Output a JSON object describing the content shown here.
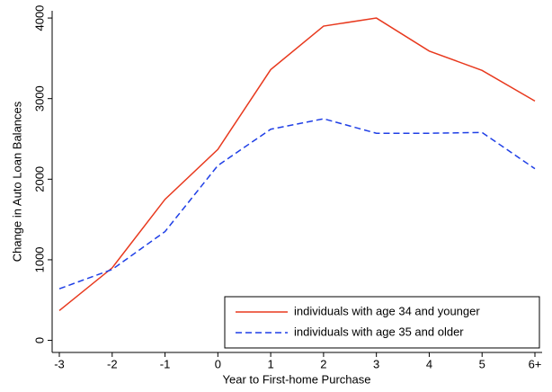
{
  "chart_data": {
    "type": "line",
    "x_label": "Year to First-home Purchase",
    "y_label": "Change in Auto Loan Balances",
    "categories": [
      "-3",
      "-2",
      "-1",
      "0",
      "1",
      "2",
      "3",
      "4",
      "5",
      "6+"
    ],
    "series": [
      {
        "name": "individuals with age 34 and younger",
        "color": "#e8391e",
        "dash": "solid",
        "values": [
          370,
          900,
          1750,
          2370,
          3360,
          3900,
          4000,
          3590,
          3350,
          2970
        ]
      },
      {
        "name": "individuals with age 35 and older",
        "color": "#1f3fe6",
        "dash": "dashed",
        "values": [
          640,
          880,
          1350,
          2170,
          2620,
          2750,
          2570,
          2570,
          2580,
          2130
        ]
      }
    ],
    "ylim": [
      -150,
      4090
    ],
    "yticks": [
      0,
      1000,
      2000,
      3000,
      4000
    ],
    "grid": false,
    "legend": "lower right"
  }
}
